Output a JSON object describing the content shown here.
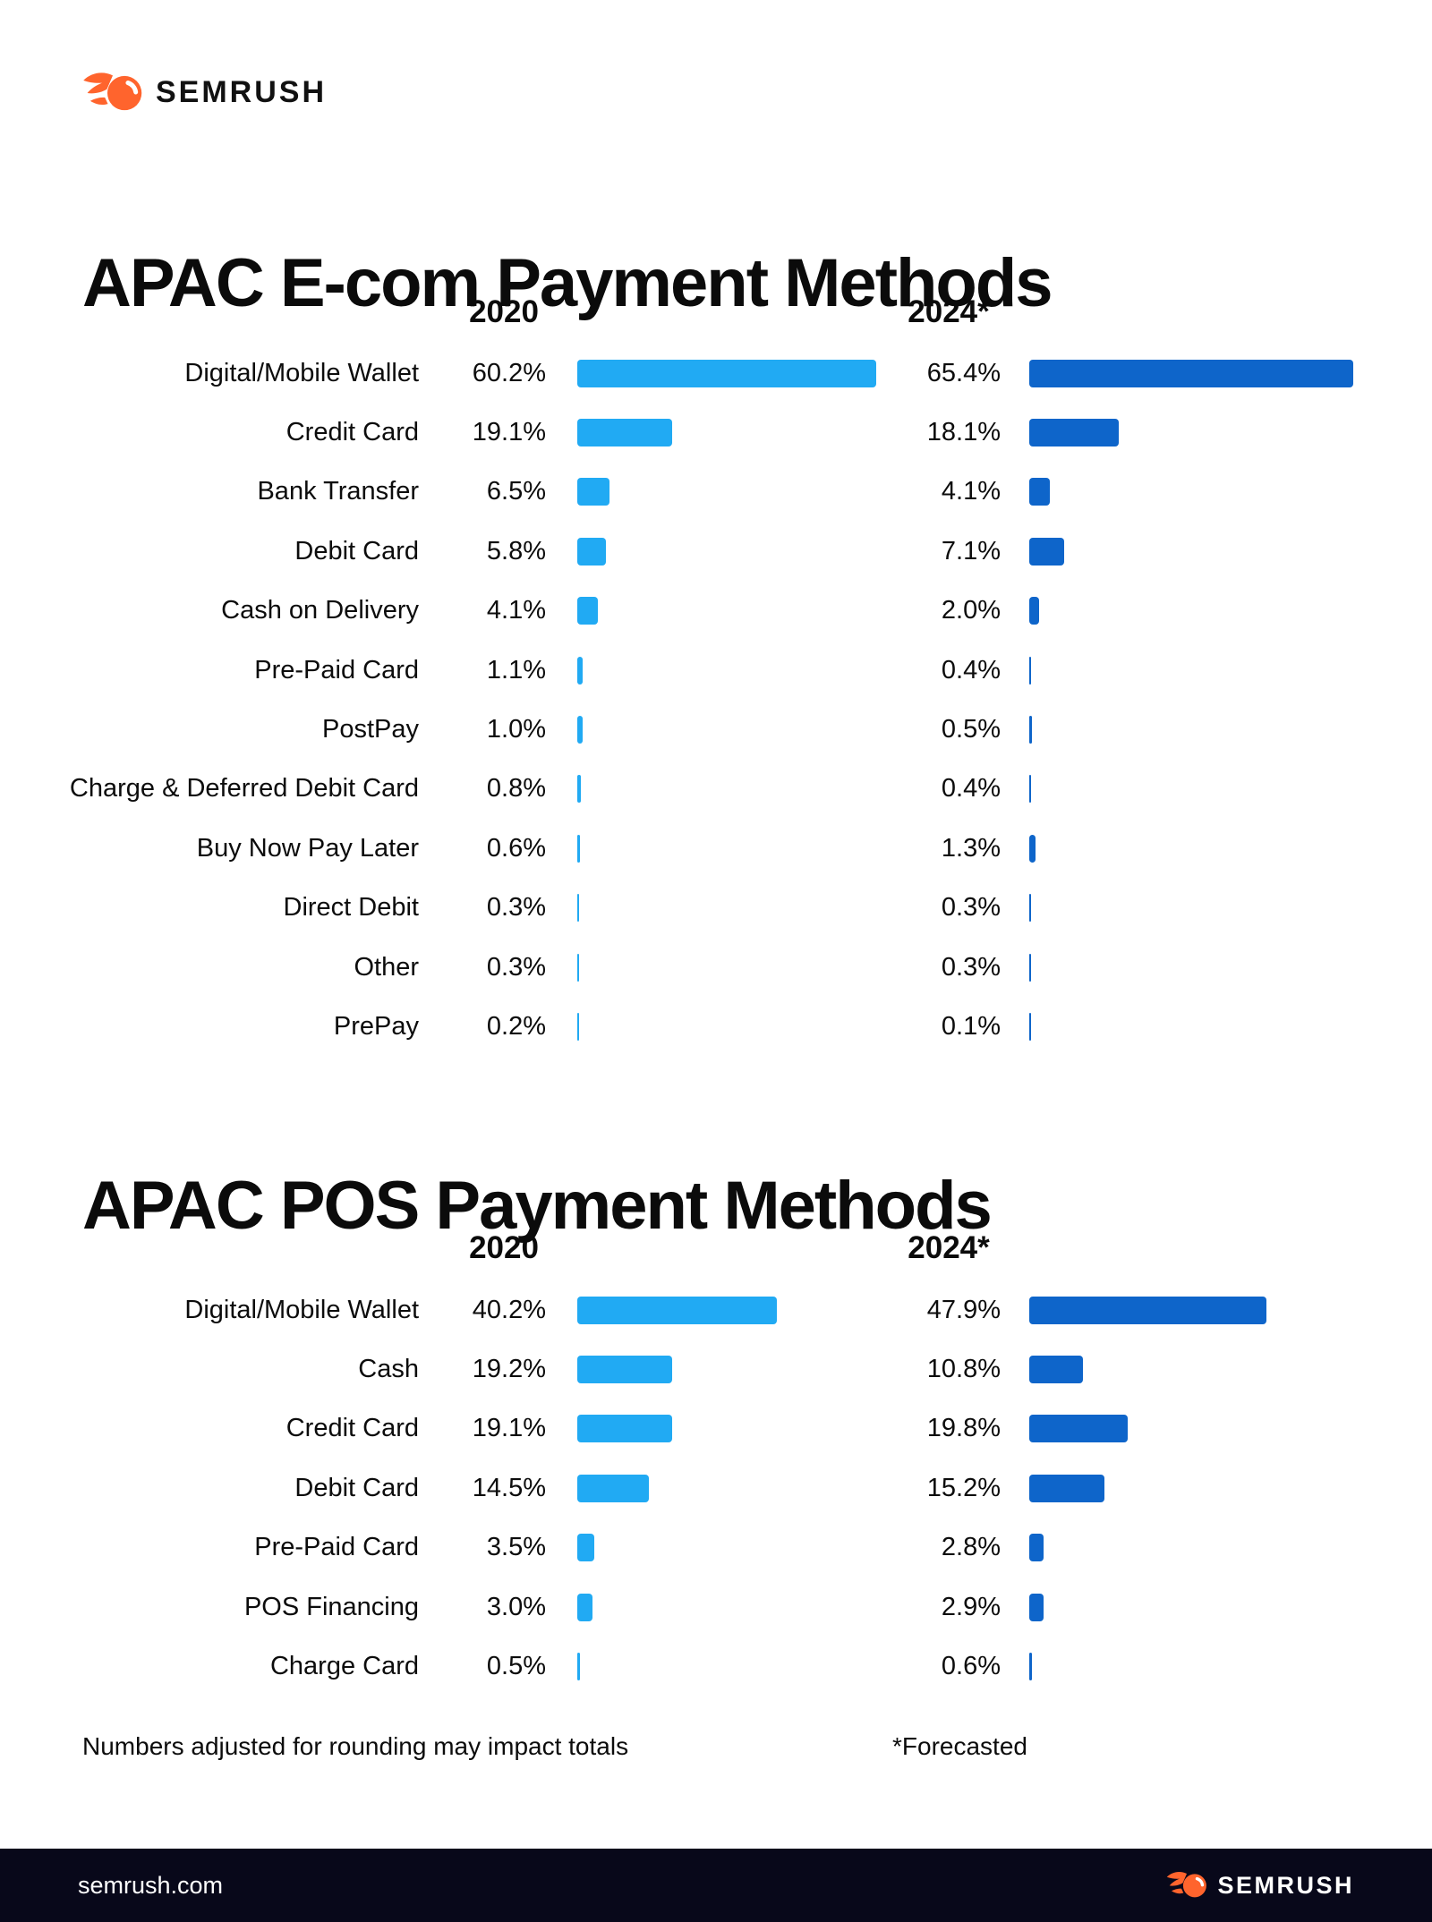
{
  "page": {
    "brand": "SEMRUSH",
    "note_left": "Numbers adjusted for rounding may impact totals",
    "note_right": "*Forecasted",
    "footer_url": "semrush.com",
    "footer_brand": "SEMRUSH"
  },
  "colors": {
    "bar_2020": "#21aaf3",
    "bar_2024": "#0e65ca",
    "logo_orange": "#ff642d",
    "footer_bg": "#08081a",
    "text": "#0c0c0c"
  },
  "chart_data": [
    {
      "type": "bar",
      "orientation": "horizontal",
      "title": "APAC E-com Payment Methods",
      "unit": "%",
      "legend_position": "column-headers",
      "grid": false,
      "xlim": [
        0,
        66
      ],
      "categories": [
        "Digital/Mobile Wallet",
        "Credit Card",
        "Bank Transfer",
        "Debit Card",
        "Cash on Delivery",
        "Pre-Paid Card",
        "PostPay",
        "Charge & Deferred Debit Card",
        "Buy Now Pay Later",
        "Direct Debit",
        "Other",
        "PrePay"
      ],
      "series": [
        {
          "name": "2020",
          "values": [
            60.2,
            19.1,
            6.5,
            5.8,
            4.1,
            1.1,
            1.0,
            0.8,
            0.6,
            0.3,
            0.3,
            0.2
          ]
        },
        {
          "name": "2024*",
          "values": [
            65.4,
            18.1,
            4.1,
            7.1,
            2.0,
            0.4,
            0.5,
            0.4,
            1.3,
            0.3,
            0.3,
            0.1
          ]
        }
      ]
    },
    {
      "type": "bar",
      "orientation": "horizontal",
      "title": "APAC POS Payment Methods",
      "unit": "%",
      "legend_position": "column-headers",
      "grid": false,
      "xlim": [
        0,
        66
      ],
      "categories": [
        "Digital/Mobile Wallet",
        "Cash",
        "Credit Card",
        "Debit Card",
        "Pre-Paid Card",
        "POS Financing",
        "Charge Card"
      ],
      "series": [
        {
          "name": "2020",
          "values": [
            40.2,
            19.2,
            19.1,
            14.5,
            3.5,
            3.0,
            0.5
          ]
        },
        {
          "name": "2024*",
          "values": [
            47.9,
            10.8,
            19.8,
            15.2,
            2.8,
            2.9,
            0.6
          ]
        }
      ]
    }
  ]
}
